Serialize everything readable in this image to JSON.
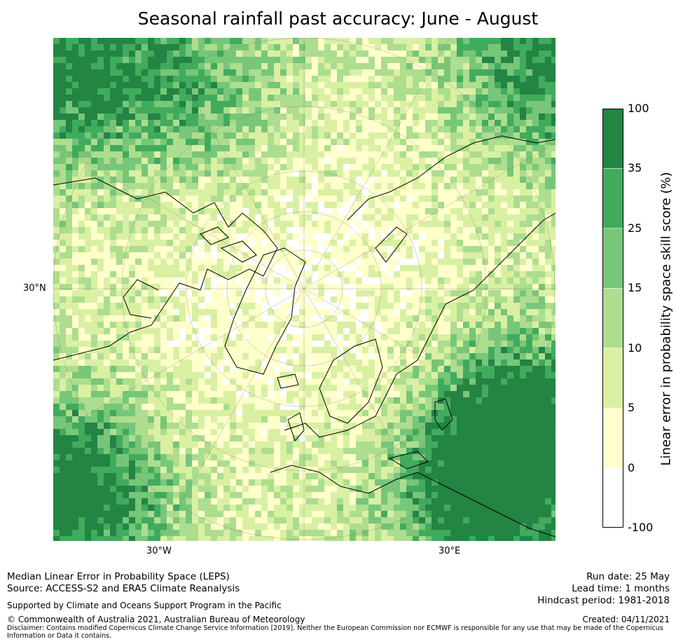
{
  "title": "Seasonal rainfall past accuracy: June - August",
  "map": {
    "projection": "north-polar-stereographic",
    "lat_labels": [
      "30°N"
    ],
    "lon_labels": [
      "30°W",
      "30°E"
    ],
    "colors": {
      "land_outline": "#000000",
      "grid": "#666666"
    }
  },
  "colorbar": {
    "label": "Linear error in probability space skill score (%)",
    "ticks": [
      "100",
      "35",
      "25",
      "15",
      "10",
      "5",
      "0",
      "-100"
    ],
    "bins": [
      {
        "range": "35 to 100",
        "color": "#238443"
      },
      {
        "range": "25 to 35",
        "color": "#41ab5d"
      },
      {
        "range": "15 to 25",
        "color": "#78c679"
      },
      {
        "range": "10 to 15",
        "color": "#addd8e"
      },
      {
        "range": "5 to 10",
        "color": "#d9f0a3"
      },
      {
        "range": "0 to 5",
        "color": "#ffffcc"
      },
      {
        "range": "-100 to 0",
        "color": "#ffffff"
      }
    ]
  },
  "footer": {
    "left_line1": "Median Linear Error in Probability Space (LEPS)",
    "left_line2": "Source: ACCESS-S2 and ERA5 Climate Reanalysis",
    "support": "Supported by Climate and Oceans Support Program in the Pacific",
    "copyright": "© Commonwealth of Australia 2021, Australian Bureau of Meteorology",
    "disclaimer": "Disclaimer: Contains modified Copernicus Climate Change Service Information [2019]. Neither the European Commission nor ECMWF is responsible for any use that may be made of the Copernicus Information or Data it contains.",
    "run_date": "Run date: 25 May",
    "lead_time": "Lead time: 1 months",
    "hindcast": "Hindcast period: 1981-2018",
    "created": "Created: 04/11/2021"
  }
}
